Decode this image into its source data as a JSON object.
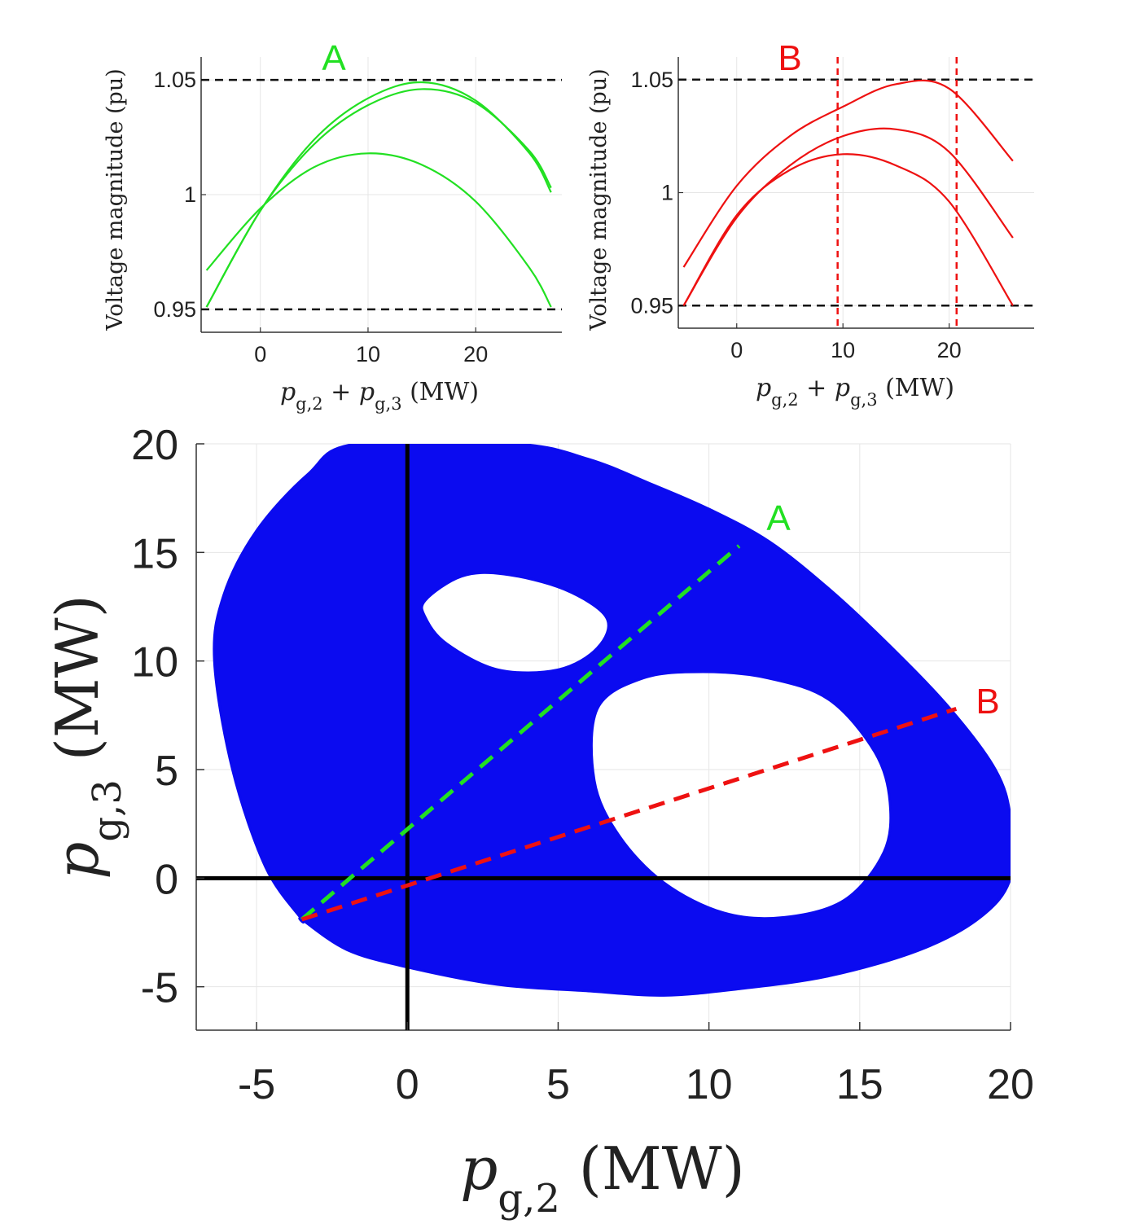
{
  "chart_data": [
    {
      "id": "A",
      "type": "line",
      "title": "A",
      "title_color": "#22e022",
      "xlabel": "p_{g,2} + p_{g,3} (MW)",
      "ylabel": "Voltage magnitude (pu)",
      "xlim": [
        -5.5,
        28
      ],
      "ylim": [
        0.94,
        1.06
      ],
      "xticks": [
        0,
        10,
        20
      ],
      "yticks": [
        0.95,
        1,
        1.05
      ],
      "ytick_labels": [
        "0.95",
        "1",
        "1.05"
      ],
      "hlines": [
        0.95,
        1.05
      ],
      "vlines": [],
      "color": "#22e022",
      "series": [
        {
          "name": "curve 1",
          "x": [
            -5,
            0,
            5,
            10,
            15,
            20,
            25,
            27
          ],
          "y": [
            0.967,
            0.994,
            1.012,
            1.018,
            1.013,
            0.997,
            0.968,
            0.951
          ]
        },
        {
          "name": "curve 2",
          "x": [
            -5,
            0,
            5,
            10,
            15,
            20,
            25,
            27
          ],
          "y": [
            0.951,
            0.993,
            1.024,
            1.042,
            1.049,
            1.041,
            1.018,
            1.001
          ]
        },
        {
          "name": "curve 3",
          "x": [
            -5,
            0,
            5,
            10,
            15,
            20,
            25,
            27
          ],
          "y": [
            0.951,
            0.993,
            1.022,
            1.039,
            1.046,
            1.04,
            1.019,
            1.003
          ]
        }
      ]
    },
    {
      "id": "B",
      "type": "line",
      "title": "B",
      "title_color": "#ee1111",
      "xlabel": "p_{g,2} + p_{g,3} (MW)",
      "ylabel": "Voltage magnitude (pu)",
      "xlim": [
        -5.5,
        28
      ],
      "ylim": [
        0.94,
        1.06
      ],
      "xticks": [
        0,
        10,
        20
      ],
      "yticks": [
        0.95,
        1,
        1.05
      ],
      "ytick_labels": [
        "0.95",
        "1",
        "1.05"
      ],
      "hlines": [
        0.95,
        1.05
      ],
      "vlines": [
        9.5,
        20.7
      ],
      "color": "#ee1111",
      "series": [
        {
          "name": "curve 1",
          "x": [
            -5,
            0,
            5,
            10,
            15,
            20,
            26
          ],
          "y": [
            0.967,
            1.003,
            1.025,
            1.038,
            1.048,
            1.046,
            1.014
          ]
        },
        {
          "name": "curve 2",
          "x": [
            -5,
            0,
            5,
            10,
            15,
            20,
            26
          ],
          "y": [
            0.95,
            0.989,
            1.012,
            1.025,
            1.028,
            1.018,
            0.98
          ]
        },
        {
          "name": "curve 3",
          "x": [
            -5,
            0,
            5,
            10,
            15,
            20,
            26
          ],
          "y": [
            0.95,
            0.99,
            1.01,
            1.017,
            1.012,
            0.996,
            0.95
          ]
        }
      ]
    },
    {
      "id": "region",
      "type": "scatter",
      "xlabel": "p_{g,2} (MW)",
      "ylabel": "p_{g,3} (MW)",
      "xlim": [
        -7,
        20
      ],
      "ylim": [
        -7,
        20
      ],
      "xticks": [
        -5,
        0,
        5,
        10,
        15,
        20
      ],
      "yticks": [
        -5,
        0,
        5,
        10,
        15,
        20
      ],
      "fill_color": "#0b0bf0",
      "outer_boundary": [
        [
          -3.5,
          -1.9
        ],
        [
          -4.7,
          0.5
        ],
        [
          -5.8,
          5
        ],
        [
          -6.4,
          10
        ],
        [
          -6.1,
          13
        ],
        [
          -5,
          16
        ],
        [
          -3.3,
          18.6
        ],
        [
          -1.7,
          20
        ],
        [
          3.6,
          20
        ],
        [
          6,
          19.3
        ],
        [
          8,
          18.2
        ],
        [
          10,
          17
        ],
        [
          12,
          15.5
        ],
        [
          14,
          13.3
        ],
        [
          16,
          10.7
        ],
        [
          18,
          7.8
        ],
        [
          19.5,
          5
        ],
        [
          20,
          2.8
        ],
        [
          20,
          0
        ],
        [
          19,
          -1.8
        ],
        [
          17,
          -3.3
        ],
        [
          14,
          -4.5
        ],
        [
          11,
          -5.1
        ],
        [
          8.5,
          -5.4
        ],
        [
          6,
          -5.2
        ],
        [
          3,
          -4.9
        ],
        [
          0,
          -4.1
        ],
        [
          -2,
          -3.3
        ],
        [
          -3.5,
          -1.9
        ]
      ],
      "holes": [
        [
          [
            0.6,
            12.8
          ],
          [
            1.8,
            13.9
          ],
          [
            3.2,
            14
          ],
          [
            5.2,
            13.3
          ],
          [
            6.6,
            12
          ],
          [
            6.3,
            10.6
          ],
          [
            5,
            9.6
          ],
          [
            3,
            9.6
          ],
          [
            1.3,
            10.8
          ],
          [
            0.6,
            12
          ]
        ],
        [
          [
            6.3,
            7.8
          ],
          [
            7.8,
            9.2
          ],
          [
            9.8,
            9.5
          ],
          [
            12,
            9.2
          ],
          [
            14,
            8.2
          ],
          [
            15.5,
            5.8
          ],
          [
            16,
            3.5
          ],
          [
            15.8,
            1.2
          ],
          [
            14.5,
            -1
          ],
          [
            12.5,
            -1.8
          ],
          [
            10.5,
            -1.6
          ],
          [
            8.5,
            -0.2
          ],
          [
            7,
            2
          ],
          [
            6.2,
            4.5
          ]
        ]
      ],
      "lines": [
        {
          "label": "A",
          "color": "#22e022",
          "x": [
            -3.5,
            11
          ],
          "y": [
            -1.9,
            15.3
          ]
        },
        {
          "label": "B",
          "color": "#ee1111",
          "x": [
            -3.5,
            18.2
          ],
          "y": [
            -1.9,
            7.8
          ]
        }
      ],
      "axis_lines": {
        "x0": 0,
        "y0": 0
      }
    }
  ],
  "labels": {
    "label_A_top": "A",
    "label_B_top": "B",
    "label_A_main": "A",
    "label_B_main": "B",
    "ylabel_small": "Voltage magnitude (pu)",
    "xlabel_small_p": "p",
    "xlabel_small_sub2": "g,2",
    "xlabel_small_plus": " + ",
    "xlabel_small_sub3": "g,3",
    "xlabel_small_unit": " (MW)",
    "xlabel_main_p": "p",
    "xlabel_main_sub": "g,2",
    "xlabel_main_unit": " (MW)",
    "ylabel_main_p": "p",
    "ylabel_main_sub": "g,3",
    "ylabel_main_unit": " (MW)"
  }
}
